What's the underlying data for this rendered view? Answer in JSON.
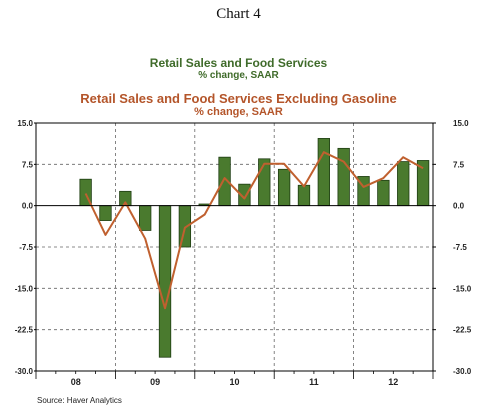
{
  "heading": "Chart 4",
  "chart_data": {
    "type": "bar+line",
    "series": [
      {
        "name": "Retail Sales and Food Services",
        "subtitle": "% change, SAAR",
        "type": "bar",
        "color": "#4a7a2e",
        "values": [
          4.8,
          -2.7,
          2.6,
          -4.5,
          -27.5,
          -7.5,
          0.3,
          8.8,
          3.9,
          8.5,
          6.6,
          3.7,
          12.2,
          10.4,
          5.3,
          4.6,
          8.0,
          8.2
        ]
      },
      {
        "name": "Retail Sales and Food Services Excluding Gasoline",
        "subtitle": "% change, SAAR",
        "type": "line",
        "color": "#c0602f",
        "values": [
          2.2,
          -5.3,
          0.6,
          -6.0,
          -18.6,
          -4.0,
          -1.6,
          5.0,
          1.3,
          7.6,
          7.6,
          3.5,
          9.7,
          8.0,
          3.4,
          5.0,
          8.8,
          6.8
        ]
      }
    ],
    "ylim": [
      -30,
      15
    ],
    "yticks": [
      "15.0",
      "7.5",
      "0.0",
      "-7.5",
      "-15.0",
      "-22.5",
      "-30.0"
    ],
    "year_labels": [
      "08",
      "09",
      "10",
      "11",
      "12"
    ],
    "grid": true,
    "legend": "top-center"
  },
  "source": "Source: Haver Analytics"
}
